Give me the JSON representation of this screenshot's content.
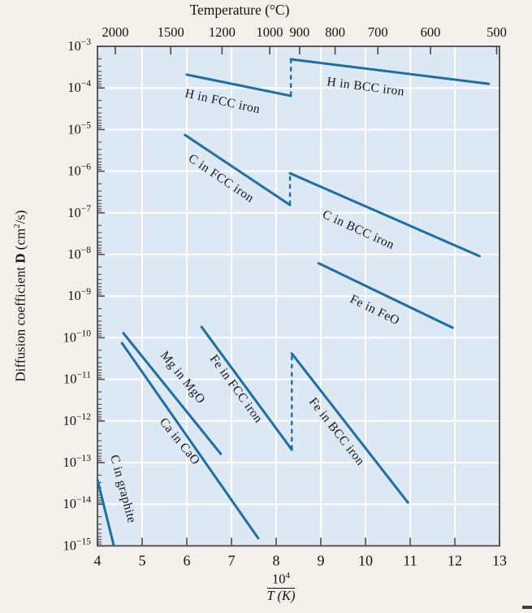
{
  "top_axis": {
    "label": "Temperature (°C)",
    "ticks_celsius": [
      2000,
      1500,
      1200,
      1000,
      900,
      800,
      700,
      600,
      500
    ]
  },
  "x_axis": {
    "ticks": [
      4,
      5,
      6,
      7,
      8,
      9,
      10,
      11,
      12,
      13
    ],
    "frac_base": "10",
    "frac_exp": "4",
    "frac_den": "T (K)"
  },
  "y_axis": {
    "label_prefix": "Diffusion coefficient",
    "label_symbol": "D",
    "unit_pre": " (cm",
    "unit_sup": "2",
    "unit_post": "/s)",
    "tick_exponents": [
      -3,
      -4,
      -5,
      -6,
      -7,
      -8,
      -9,
      -10,
      -11,
      -12,
      -13,
      -14,
      -15
    ]
  },
  "chart_data": {
    "type": "line",
    "title": "Temperature (°C)",
    "xlabel": "10^4 / T (K)",
    "ylabel": "Diffusion coefficient D (cm2/s)",
    "xlim": [
      4,
      13
    ],
    "y_log10_range": [
      -15,
      -3
    ],
    "grid": true,
    "x_units": "10^4 / T(K)",
    "series": [
      {
        "name": "H in FCC iron",
        "x": [
          6.0,
          8.33
        ],
        "logD": [
          -3.68,
          -4.19
        ]
      },
      {
        "name": "H in BCC iron",
        "x": [
          8.33,
          12.76
        ],
        "logD": [
          -3.31,
          -3.9
        ]
      },
      {
        "name": "C in FCC iron",
        "x": [
          5.96,
          8.31
        ],
        "logD": [
          -5.13,
          -6.81
        ]
      },
      {
        "name": "C in BCC iron",
        "x": [
          8.31,
          12.55
        ],
        "logD": [
          -6.05,
          -8.04
        ]
      },
      {
        "name": "Fe in FeO",
        "x": [
          8.95,
          11.95
        ],
        "logD": [
          -8.21,
          -9.76
        ]
      },
      {
        "name": "Fe in FCC iron",
        "x": [
          6.33,
          8.35
        ],
        "logD": [
          -9.74,
          -12.69
        ]
      },
      {
        "name": "Fe in BCC iron",
        "x": [
          8.35,
          10.95
        ],
        "logD": [
          -10.38,
          -13.96
        ]
      },
      {
        "name": "Mg in MgO",
        "x": [
          4.58,
          6.76
        ],
        "logD": [
          -9.89,
          -12.79
        ]
      },
      {
        "name": "Ca in CaO",
        "x": [
          4.55,
          7.6
        ],
        "logD": [
          -10.13,
          -14.82
        ]
      },
      {
        "name": "C in graphite",
        "x": [
          4.0,
          4.36
        ],
        "logD": [
          -13.41,
          -14.97
        ]
      }
    ],
    "dashed_transitions": [
      {
        "x": 8.33,
        "logD_from": -4.19,
        "logD_to": -3.31
      },
      {
        "x": 8.31,
        "logD_from": -6.81,
        "logD_to": -6.05
      },
      {
        "x": 8.35,
        "logD_from": -12.69,
        "logD_to": -10.38
      }
    ]
  },
  "colors": {
    "line": "#1e6da3",
    "plot_bg": "#dce8f3",
    "grid": "#ffffff",
    "frame": "#4a4a4a",
    "text": "#121212",
    "page_bg": "#f4f1ec"
  }
}
